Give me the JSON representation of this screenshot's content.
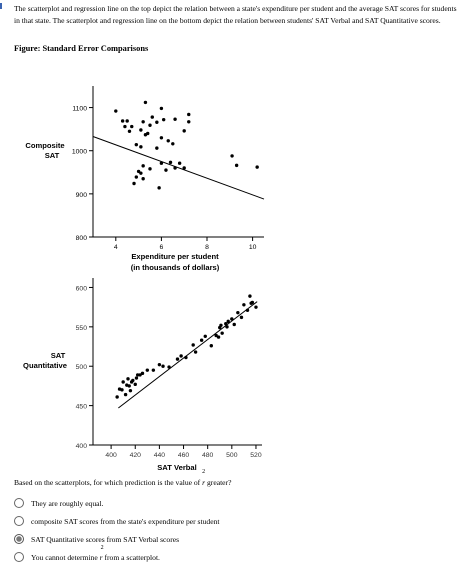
{
  "intro": "The scatterplot and regression line on the top depict the relation between a state's expenditure per student and the average SAT scores for students in that state. The scatterplot and regression line on the bottom depict the relation between students' SAT Verbal and SAT Quantitative scores.",
  "figure_title": "Figure: Standard Error Comparisons",
  "question": {
    "before": "Based on the scatterplots, for which prediction is the value of",
    "var": "r",
    "exp": "2",
    "after": "greater?"
  },
  "options": [
    {
      "text": "They are roughly equal.",
      "selected": false
    },
    {
      "text": "composite SAT scores from the state's expenditure per student",
      "selected": false
    },
    {
      "text": "SAT Quantitative scores from SAT Verbal scores",
      "selected": true
    },
    {
      "text_before": "You cannot determine",
      "var": "r",
      "exp": "2",
      "text_after": "from a scatterplot.",
      "selected": false
    }
  ],
  "chart_data": [
    {
      "type": "scatter",
      "title": "",
      "xlabel": "Expenditure per student (in thousands of dollars)",
      "ylabel": "Composite SAT",
      "xlim": [
        3,
        10.5
      ],
      "ylim": [
        800,
        1150
      ],
      "xticks": [
        "4",
        "6",
        "8",
        "10"
      ],
      "yticks": [
        "800",
        "900",
        "1000",
        "1100"
      ],
      "grid": false,
      "regression": {
        "x": [
          3,
          10.5
        ],
        "y": [
          1033,
          888
        ]
      },
      "series": [
        {
          "x": [
            5.3,
            4.0,
            6.0,
            7.2,
            4.3,
            4.5,
            5.2,
            5.6,
            5.8,
            6.1,
            4.4,
            4.7,
            5.5,
            6.6,
            7.2,
            5.1,
            5.4,
            6.0,
            4.6,
            5.3,
            6.3,
            7.0,
            4.9,
            5.8,
            5.1,
            6.5,
            9.1,
            5.2,
            5.5,
            6.0,
            6.2,
            6.4,
            6.6,
            6.8,
            7.0,
            9.3,
            10.2,
            5.0,
            5.1,
            4.9,
            4.8,
            5.2,
            5.9
          ],
          "y": [
            1112,
            1092,
            1098,
            1084,
            1069,
            1069,
            1067,
            1078,
            1066,
            1072,
            1056,
            1056,
            1059,
            1073,
            1067,
            1048,
            1040,
            1030,
            1045,
            1037,
            1023,
            1046,
            1014,
            1006,
            1009,
            1016,
            988,
            965,
            958,
            971,
            955,
            973,
            960,
            971,
            960,
            966,
            962,
            952,
            948,
            939,
            924,
            935,
            914
          ]
        }
      ]
    },
    {
      "type": "scatter",
      "title": "",
      "xlabel": "SAT Verbal",
      "ylabel": "SAT Quantitative",
      "xlim": [
        385,
        525
      ],
      "ylim": [
        400,
        612
      ],
      "xticks": [
        "400",
        "420",
        "440",
        "460",
        "480",
        "500",
        "520"
      ],
      "yticks": [
        "400",
        "450",
        "500",
        "550",
        "600"
      ],
      "grid": false,
      "regression": {
        "x": [
          406,
          521
        ],
        "y": [
          447,
          582
        ]
      },
      "series": [
        {
          "x": [
            405,
            407,
            409,
            410,
            412,
            413,
            414,
            415,
            416,
            417,
            418,
            420,
            421,
            422,
            424,
            426,
            430,
            435,
            440,
            443,
            448,
            455,
            458,
            462,
            468,
            470,
            475,
            478,
            483,
            487,
            489,
            490,
            491,
            492,
            495,
            496,
            497,
            500,
            502,
            505,
            508,
            510,
            513,
            515,
            516,
            517,
            520
          ],
          "y": [
            461,
            471,
            470,
            480,
            464,
            476,
            484,
            475,
            469,
            480,
            482,
            477,
            485,
            489,
            489,
            491,
            495,
            495,
            502,
            500,
            499,
            509,
            513,
            511,
            527,
            518,
            533,
            538,
            526,
            539,
            537,
            549,
            552,
            542,
            554,
            550,
            557,
            560,
            553,
            568,
            562,
            578,
            571,
            589,
            580,
            581,
            575
          ]
        }
      ]
    }
  ]
}
